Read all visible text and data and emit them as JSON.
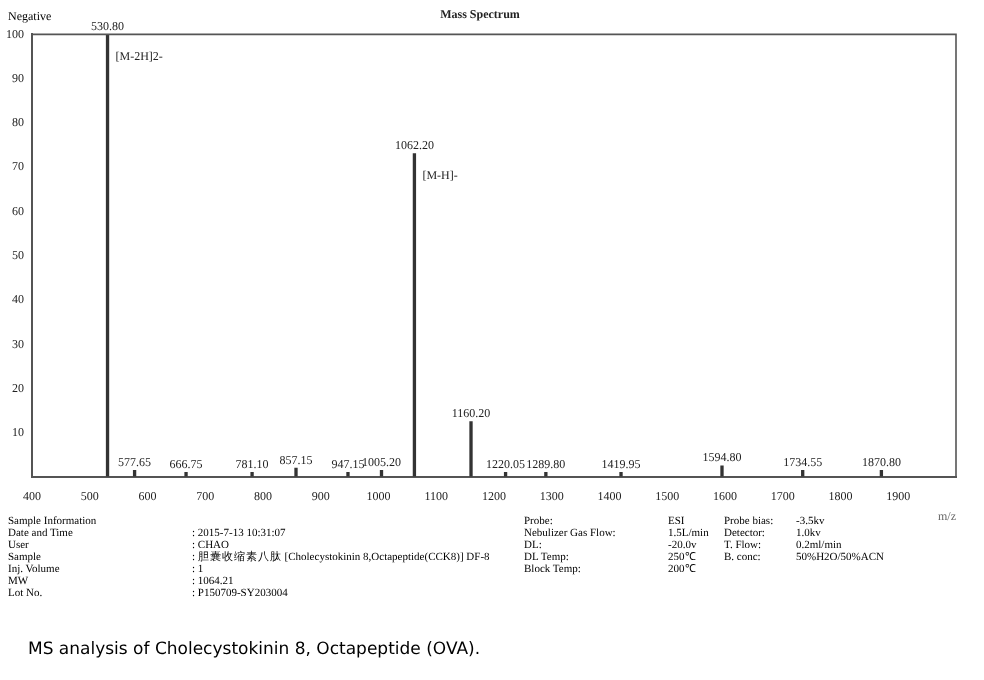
{
  "chart_data": {
    "type": "bar",
    "title": "Mass Spectrum",
    "xlabel": "m/z",
    "x": [
      530.8,
      577.65,
      666.75,
      781.1,
      857.15,
      947.15,
      1005.2,
      1062.2,
      1160.2,
      1220.05,
      1289.8,
      1419.95,
      1594.8,
      1734.55,
      1870.8
    ],
    "values": [
      100,
      1.5,
      1,
      1,
      2,
      1,
      1.5,
      73,
      12.5,
      1,
      1,
      1,
      2.5,
      1.5,
      1.5
    ],
    "color": "#333333",
    "xlim": [
      400,
      2000
    ],
    "xticks": [
      400,
      500,
      600,
      700,
      800,
      900,
      1000,
      1100,
      1200,
      1300,
      1400,
      1500,
      1600,
      1700,
      1800,
      1900
    ],
    "ylim": [
      0,
      100
    ],
    "yticks": [
      10,
      20,
      30,
      40,
      50,
      60,
      70,
      80,
      90,
      100
    ],
    "grid": false,
    "legend": false,
    "annotations": [
      {
        "text": "530.80",
        "x": 530.8,
        "y": 100
      },
      {
        "text": "[M-2H]2-",
        "x": 530.8,
        "y": 100
      },
      {
        "text": "577.65",
        "x": 577.65,
        "y": 1.5
      },
      {
        "text": "666.75",
        "x": 666.75,
        "y": 1
      },
      {
        "text": "781.10",
        "x": 781.1,
        "y": 1
      },
      {
        "text": "857.15",
        "x": 857.15,
        "y": 2
      },
      {
        "text": "947.15",
        "x": 947.15,
        "y": 1
      },
      {
        "text": "1005.20",
        "x": 1005.2,
        "y": 1.5
      },
      {
        "text": "1062.20",
        "x": 1062.2,
        "y": 73
      },
      {
        "text": "[M-H]-",
        "x": 1062.2,
        "y": 73
      },
      {
        "text": "1160.20",
        "x": 1160.2,
        "y": 12.5
      },
      {
        "text": "1220.05",
        "x": 1220.05,
        "y": 1
      },
      {
        "text": "1289.80",
        "x": 1289.8,
        "y": 1
      },
      {
        "text": "1419.95",
        "x": 1419.95,
        "y": 1
      },
      {
        "text": "1594.80",
        "x": 1594.8,
        "y": 2.5
      },
      {
        "text": "1734.55",
        "x": 1734.55,
        "y": 1.5
      },
      {
        "text": "1870.80",
        "x": 1870.8,
        "y": 1.5
      },
      "Negative",
      "Sample Information",
      "Date and Time",
      ": 2015-7-13 10:31:07",
      "User",
      ": CHAO",
      "Sample",
      ": 胆囊收缩素八肽 [Cholecystokinin 8,Octapeptide(CCK8)] DF-8",
      "Inj. Volume",
      ": 1",
      "MW",
      ": 1064.21",
      "Lot No.",
      ": P150709-SY203004",
      "Probe:",
      "ESI",
      "Probe bias:",
      "-3.5kv",
      "Nebulizer Gas Flow:",
      "1.5L/min",
      "Detector:",
      "1.0kv",
      "DL:",
      "-20.0v",
      "T. Flow:",
      "0.2ml/min",
      "DL Temp:",
      "250℃",
      "B. conc:",
      "50%H2O/50%ACN",
      "Block Temp:",
      "200℃",
      "MS analysis of Cholecystokinin 8, Octapeptide (OVA)."
    ]
  }
}
